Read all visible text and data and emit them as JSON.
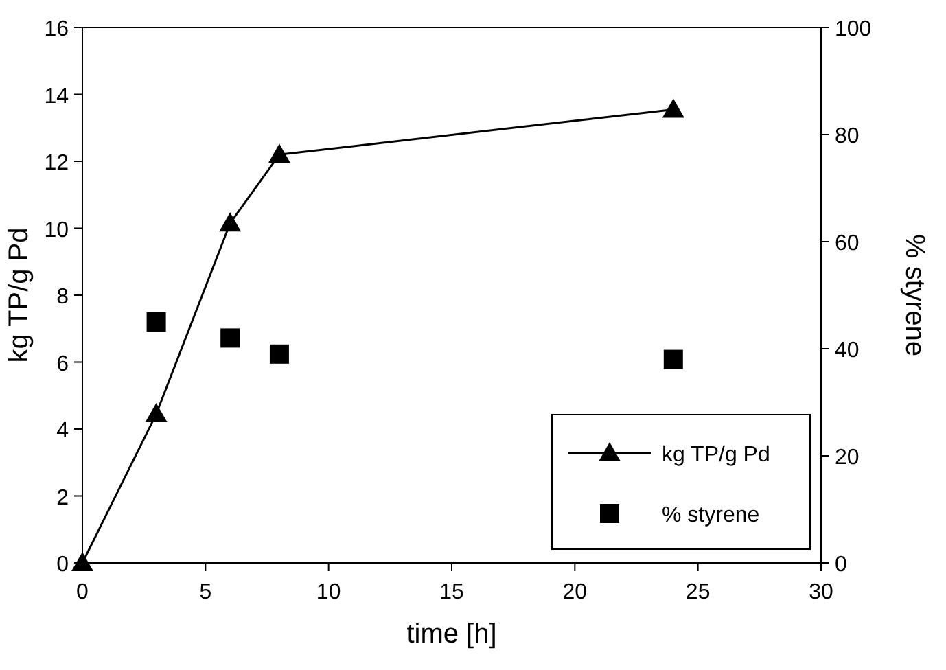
{
  "chart_data": {
    "type": "line",
    "xlabel": "time [h]",
    "ylabel": "kg TP/g Pd",
    "y2label": "% styrene",
    "xlim": [
      0,
      30
    ],
    "xticks": [
      0,
      5,
      10,
      15,
      20,
      25,
      30
    ],
    "ylim": [
      0,
      16
    ],
    "yticks": [
      0,
      2,
      4,
      6,
      8,
      10,
      12,
      14,
      16
    ],
    "y2lim": [
      0,
      100
    ],
    "y2ticks": [
      0,
      20,
      40,
      60,
      80,
      100
    ],
    "grid": false,
    "legend": "bottom right",
    "series": [
      {
        "name": "kg TP/g Pd",
        "type": "line",
        "marker": "triangle",
        "color": "#000000",
        "x": [
          0,
          3,
          6,
          8,
          24
        ],
        "values": [
          0,
          4.45,
          10.15,
          12.2,
          13.55
        ]
      },
      {
        "name": "% styrene",
        "type": "scatter",
        "marker": "square",
        "axis": "y2",
        "color": "#000000",
        "x": [
          3,
          6,
          8,
          24
        ],
        "values": [
          45,
          42,
          39,
          38
        ]
      }
    ]
  }
}
